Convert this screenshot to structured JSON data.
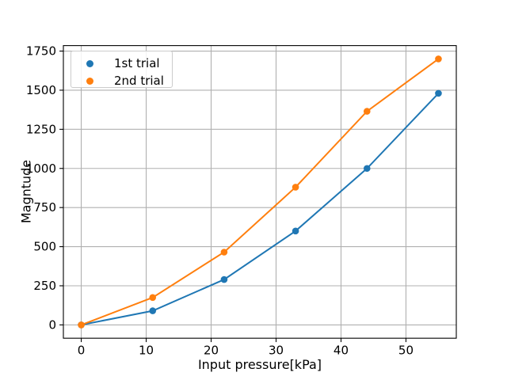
{
  "chart_data": {
    "type": "line",
    "title": "",
    "xlabel": "Input pressure[kPa]",
    "ylabel": "Magntude",
    "x": [
      0,
      11,
      22,
      33,
      44,
      55
    ],
    "series": [
      {
        "name": "1st trial",
        "color": "#1f77b4",
        "marker": "circle",
        "values": [
          0,
          90,
          290,
          600,
          1000,
          1480
        ]
      },
      {
        "name": "2nd trial",
        "color": "#ff7f0e",
        "marker": "circle",
        "values": [
          0,
          175,
          465,
          880,
          1365,
          1700
        ]
      }
    ],
    "xticks": [
      0,
      10,
      20,
      30,
      40,
      50
    ],
    "yticks": [
      0,
      250,
      500,
      750,
      1000,
      1250,
      1500,
      1750
    ],
    "xlim": [
      -2.75,
      57.75
    ],
    "ylim": [
      -85,
      1785
    ],
    "grid": true,
    "legend_position": "upper left",
    "colors": {
      "grid": "#b0b0b0",
      "axis": "#000000",
      "tick_text": "#000000",
      "background": "#ffffff"
    }
  }
}
